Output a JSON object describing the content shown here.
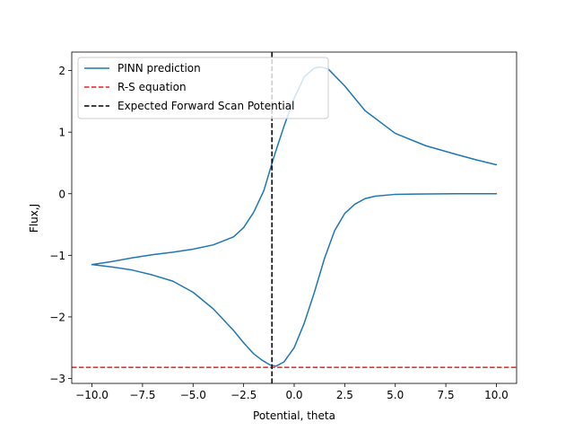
{
  "chart_data": {
    "type": "line",
    "xlabel": "Potential, theta",
    "ylabel": "Flux,J",
    "xlim": [
      -11.0,
      11.0
    ],
    "ylim": [
      -3.08,
      2.3
    ],
    "x_ticks": [
      -10.0,
      -7.5,
      -5.0,
      -2.5,
      0.0,
      2.5,
      5.0,
      7.5,
      10.0
    ],
    "x_tick_labels": [
      "−10.0",
      "−7.5",
      "−5.0",
      "−2.5",
      "0.0",
      "2.5",
      "5.0",
      "7.5",
      "10.0"
    ],
    "y_ticks": [
      -3,
      -2,
      -1,
      0,
      1,
      2
    ],
    "y_tick_labels": [
      "−3",
      "−2",
      "−1",
      "0",
      "1",
      "2"
    ],
    "grid": false,
    "legend_position": "top-left",
    "series": [
      {
        "name": "PINN prediction",
        "style": "solid",
        "color": "#1f77b4",
        "points": [
          [
            10.0,
            0.0
          ],
          [
            8.0,
            0.0
          ],
          [
            6.0,
            -0.005
          ],
          [
            5.0,
            -0.01
          ],
          [
            4.0,
            -0.04
          ],
          [
            3.5,
            -0.08
          ],
          [
            3.0,
            -0.17
          ],
          [
            2.5,
            -0.32
          ],
          [
            2.0,
            -0.6
          ],
          [
            1.5,
            -1.05
          ],
          [
            1.0,
            -1.6
          ],
          [
            0.5,
            -2.1
          ],
          [
            0.0,
            -2.5
          ],
          [
            -0.5,
            -2.73
          ],
          [
            -0.9,
            -2.8
          ],
          [
            -1.2,
            -2.78
          ],
          [
            -1.6,
            -2.7
          ],
          [
            -2.0,
            -2.6
          ],
          [
            -2.5,
            -2.42
          ],
          [
            -3.0,
            -2.22
          ],
          [
            -4.0,
            -1.87
          ],
          [
            -5.0,
            -1.6
          ],
          [
            -6.0,
            -1.42
          ],
          [
            -7.0,
            -1.32
          ],
          [
            -8.0,
            -1.24
          ],
          [
            -9.0,
            -1.19
          ],
          [
            -10.0,
            -1.15
          ],
          [
            -9.0,
            -1.1
          ],
          [
            -8.0,
            -1.04
          ],
          [
            -7.0,
            -0.99
          ],
          [
            -6.0,
            -0.95
          ],
          [
            -5.0,
            -0.9
          ],
          [
            -4.0,
            -0.83
          ],
          [
            -3.0,
            -0.7
          ],
          [
            -2.5,
            -0.55
          ],
          [
            -2.0,
            -0.3
          ],
          [
            -1.5,
            0.05
          ],
          [
            -1.0,
            0.6
          ],
          [
            -0.5,
            1.1
          ],
          [
            0.0,
            1.55
          ],
          [
            0.5,
            1.9
          ],
          [
            1.0,
            2.04
          ],
          [
            1.3,
            2.06
          ],
          [
            1.7,
            2.02
          ],
          [
            2.5,
            1.75
          ],
          [
            3.5,
            1.35
          ],
          [
            5.0,
            0.98
          ],
          [
            6.5,
            0.78
          ],
          [
            8.0,
            0.64
          ],
          [
            9.0,
            0.55
          ],
          [
            10.0,
            0.47
          ]
        ]
      },
      {
        "name": "R-S equation",
        "style": "dashed",
        "color": "#d62728",
        "orientation": "horizontal",
        "value": -2.82
      },
      {
        "name": "Expected Forward Scan Potential",
        "style": "dashed",
        "color": "#000000",
        "orientation": "vertical",
        "value": -1.1
      }
    ]
  }
}
